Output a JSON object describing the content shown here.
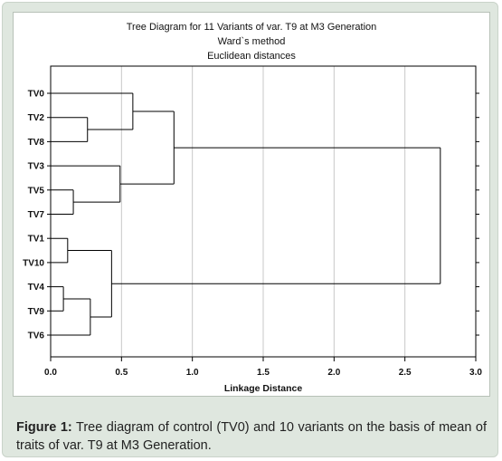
{
  "chart_data": {
    "type": "dendrogram",
    "title_lines": [
      "Tree Diagram for 11 Variants of var. T9 at M3 Generation",
      "Ward`s method",
      "Euclidean distances"
    ],
    "xlabel": "Linkage Distance",
    "xlim": [
      0.0,
      3.0
    ],
    "xticks": [
      "0.0",
      "0.5",
      "1.0",
      "1.5",
      "2.0",
      "2.5",
      "3.0"
    ],
    "leaves": [
      "TV0",
      "TV2",
      "TV8",
      "TV3",
      "TV5",
      "TV7",
      "TV1",
      "TV10",
      "TV4",
      "TV9",
      "TV6"
    ],
    "merges": [
      {
        "a": "TV4",
        "b": "TV9",
        "distance": 0.09
      },
      {
        "a": "TV1",
        "b": "TV10",
        "distance": 0.12
      },
      {
        "a": "TV5",
        "b": "TV7",
        "distance": 0.16
      },
      {
        "a": "TV2",
        "b": "TV8",
        "distance": 0.26
      },
      {
        "a": "TV4+TV9",
        "b": "TV6",
        "distance": 0.28
      },
      {
        "a": "TV1+TV10",
        "b": "TV4+TV9+TV6",
        "distance": 0.43
      },
      {
        "a": "TV3",
        "b": "TV5+TV7",
        "distance": 0.49
      },
      {
        "a": "TV0",
        "b": "TV2+TV8",
        "distance": 0.58
      },
      {
        "a": "TV0+TV2+TV8",
        "b": "TV3+TV5+TV7",
        "distance": 0.87
      },
      {
        "a": "TV0+TV2+TV8+TV3+TV5+TV7",
        "b": "TV1+TV10+TV4+TV9+TV6",
        "distance": 2.75
      }
    ],
    "grid": true
  },
  "caption": {
    "label": "Figure 1:",
    "text": " Tree diagram of control (TV0) and 10 variants on the basis of mean of  traits of var. T9 at M3 Generation."
  }
}
